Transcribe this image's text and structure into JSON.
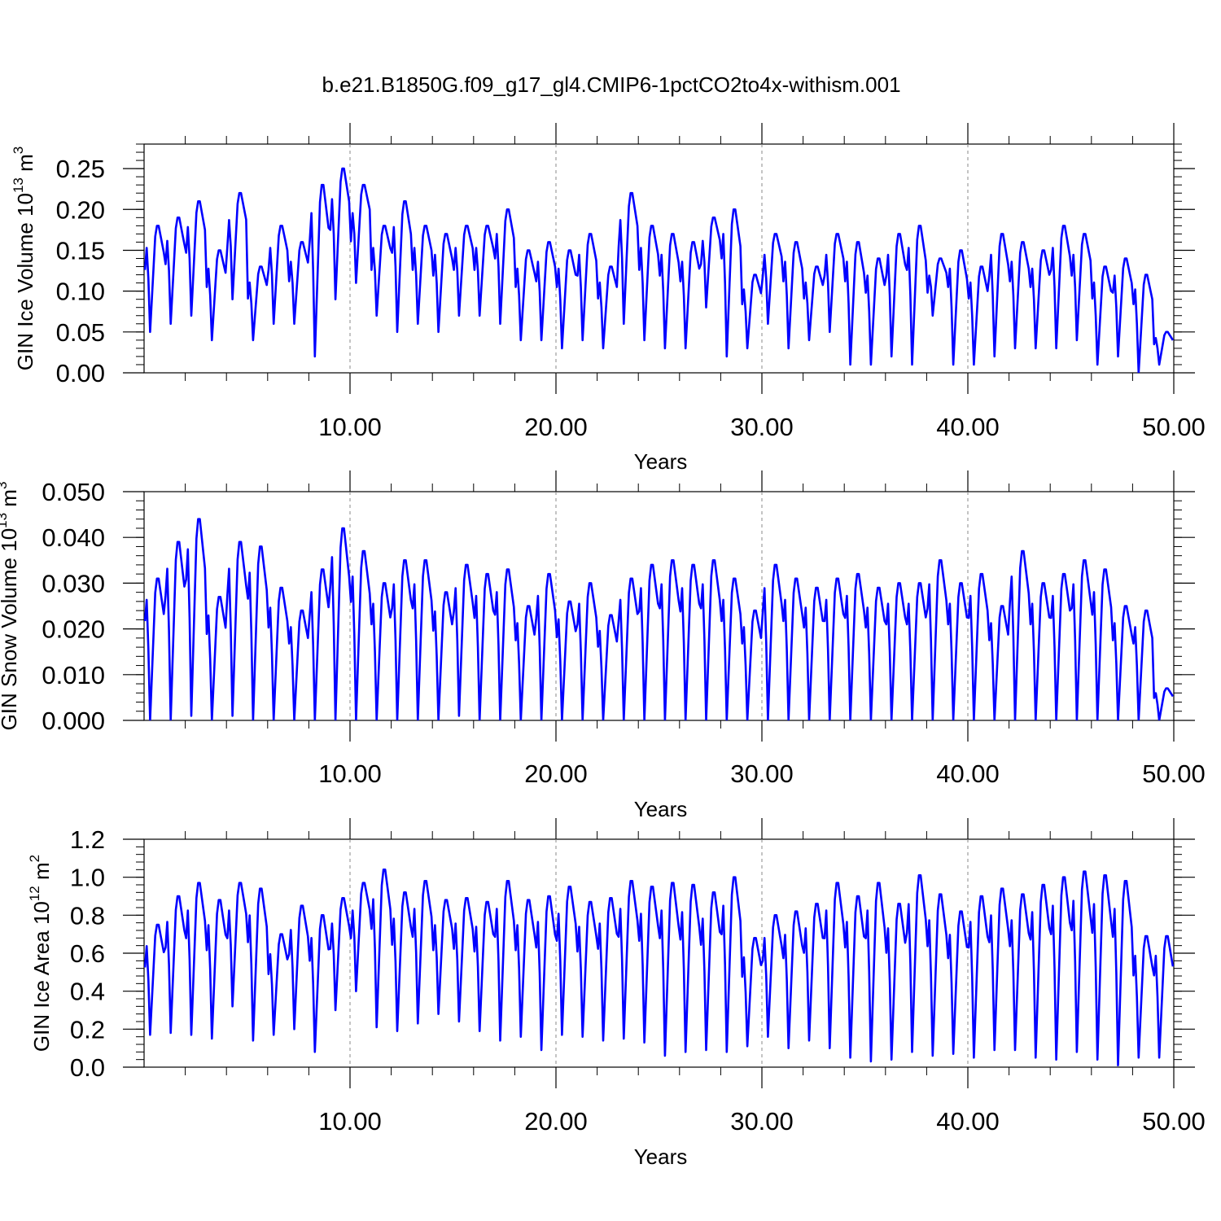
{
  "chart_data": [
    {
      "type": "line",
      "title": "b.e21.B1850G.f09_g17_gl4.CMIP6-1pctCO2to4x-withism.001",
      "xlabel": "Years",
      "ylabel": {
        "prefix": "GIN Ice Volume 10",
        "exp": "13",
        "unit": " m",
        "unit_exp": "3"
      },
      "xlim": [
        0,
        50
      ],
      "ylim": [
        0,
        0.28
      ],
      "xticks": [
        10,
        20,
        30,
        40,
        50
      ],
      "xtick_labels": [
        "10.00",
        "20.00",
        "30.00",
        "40.00",
        "50.00"
      ],
      "yticks": [
        0,
        0.05,
        0.1,
        0.15,
        0.2,
        0.25
      ],
      "ytick_labels": [
        "0.00",
        "0.05",
        "0.10",
        "0.15",
        "0.20",
        "0.25"
      ],
      "grid": "dashed vertical at major x ticks",
      "color": "#0000ff",
      "series": [
        {
          "values_per_year": 12,
          "peaks": [
            0.18,
            0.19,
            0.21,
            0.15,
            0.22,
            0.13,
            0.18,
            0.16,
            0.23,
            0.25,
            0.23,
            0.18,
            0.21,
            0.18,
            0.17,
            0.18,
            0.18,
            0.2,
            0.15,
            0.16,
            0.15,
            0.17,
            0.13,
            0.22,
            0.18,
            0.17,
            0.16,
            0.19,
            0.2,
            0.12,
            0.17,
            0.16,
            0.13,
            0.17,
            0.16,
            0.14,
            0.17,
            0.18,
            0.14,
            0.15,
            0.13,
            0.17,
            0.16,
            0.15,
            0.18,
            0.17,
            0.13,
            0.14,
            0.12,
            0.05
          ],
          "troughs": [
            0.05,
            0.06,
            0.07,
            0.04,
            0.09,
            0.04,
            0.06,
            0.06,
            0.02,
            0.09,
            0.11,
            0.07,
            0.05,
            0.06,
            0.05,
            0.07,
            0.07,
            0.06,
            0.04,
            0.04,
            0.03,
            0.04,
            0.03,
            0.06,
            0.04,
            0.03,
            0.03,
            0.08,
            0.02,
            0.03,
            0.06,
            0.03,
            0.04,
            0.05,
            0.01,
            0.01,
            0.02,
            0.01,
            0.07,
            0.01,
            0.01,
            0.02,
            0.03,
            0.03,
            0.03,
            0.04,
            0.01,
            0.02,
            0.0,
            0.01
          ]
        }
      ]
    },
    {
      "type": "line",
      "xlabel": "Years",
      "ylabel": {
        "prefix": "GIN Snow Volume 10",
        "exp": "13",
        "unit": " m",
        "unit_exp": "3"
      },
      "xlim": [
        0,
        50
      ],
      "ylim": [
        0,
        0.05
      ],
      "xticks": [
        10,
        20,
        30,
        40,
        50
      ],
      "xtick_labels": [
        "10.00",
        "20.00",
        "30.00",
        "40.00",
        "50.00"
      ],
      "yticks": [
        0,
        0.01,
        0.02,
        0.03,
        0.04,
        0.05
      ],
      "ytick_labels": [
        "0.000",
        "0.010",
        "0.020",
        "0.030",
        "0.040",
        "0.050"
      ],
      "grid": "dashed vertical at major x ticks",
      "color": "#0000ff",
      "series": [
        {
          "values_per_year": 12,
          "peaks": [
            0.031,
            0.039,
            0.044,
            0.027,
            0.039,
            0.038,
            0.029,
            0.024,
            0.033,
            0.042,
            0.037,
            0.03,
            0.035,
            0.035,
            0.028,
            0.034,
            0.032,
            0.033,
            0.025,
            0.032,
            0.026,
            0.03,
            0.023,
            0.031,
            0.034,
            0.035,
            0.034,
            0.035,
            0.031,
            0.024,
            0.034,
            0.031,
            0.029,
            0.031,
            0.032,
            0.029,
            0.03,
            0.03,
            0.035,
            0.03,
            0.032,
            0.025,
            0.037,
            0.03,
            0.032,
            0.035,
            0.033,
            0.025,
            0.024,
            0.007
          ],
          "troughs": [
            0.0,
            0.0,
            0.001,
            0.0,
            0.001,
            0.0,
            0.0,
            0.0,
            0.0,
            0.0,
            0.0,
            0.0,
            0.0,
            0.0,
            0.0,
            0.001,
            0.0,
            0.0,
            0.0,
            0.0,
            0.0,
            0.0,
            0.0,
            0.0,
            0.0,
            0.0,
            0.0,
            0.0,
            0.0,
            0.0,
            0.0,
            0.0,
            0.0,
            0.0,
            0.0,
            0.0,
            0.0,
            0.0,
            0.0,
            0.0,
            0.0,
            0.0,
            0.0,
            0.0,
            0.0,
            0.0,
            0.0,
            0.0,
            0.0,
            0.0
          ]
        }
      ]
    },
    {
      "type": "line",
      "xlabel": "Years",
      "ylabel": {
        "prefix": "GIN Ice Area 10",
        "exp": "12",
        "unit": " m",
        "unit_exp": "2"
      },
      "xlim": [
        0,
        50
      ],
      "ylim": [
        0,
        1.2
      ],
      "xticks": [
        10,
        20,
        30,
        40,
        50
      ],
      "xtick_labels": [
        "10.00",
        "20.00",
        "30.00",
        "40.00",
        "50.00"
      ],
      "yticks": [
        0,
        0.2,
        0.4,
        0.6,
        0.8,
        1.0,
        1.2
      ],
      "ytick_labels": [
        "0.0",
        "0.2",
        "0.4",
        "0.6",
        "0.8",
        "1.0",
        "1.2"
      ],
      "grid": "dashed vertical at major x ticks",
      "color": "#0000ff",
      "series": [
        {
          "values_per_year": 12,
          "peaks": [
            0.75,
            0.9,
            0.97,
            0.88,
            0.97,
            0.94,
            0.7,
            0.85,
            0.8,
            0.89,
            0.97,
            1.04,
            0.92,
            0.98,
            0.88,
            0.89,
            0.87,
            0.98,
            0.88,
            0.9,
            0.95,
            0.87,
            0.89,
            0.98,
            0.95,
            0.97,
            0.96,
            0.92,
            1.0,
            0.68,
            0.8,
            0.82,
            0.86,
            0.97,
            0.9,
            0.97,
            0.86,
            1.01,
            0.91,
            0.82,
            0.9,
            0.94,
            0.91,
            0.96,
            1.0,
            1.03,
            1.01,
            0.98,
            0.69,
            0.69
          ],
          "troughs": [
            0.17,
            0.18,
            0.17,
            0.15,
            0.32,
            0.14,
            0.17,
            0.2,
            0.08,
            0.3,
            0.4,
            0.21,
            0.19,
            0.23,
            0.28,
            0.24,
            0.19,
            0.14,
            0.16,
            0.09,
            0.17,
            0.16,
            0.14,
            0.15,
            0.13,
            0.06,
            0.08,
            0.09,
            0.08,
            0.11,
            0.16,
            0.1,
            0.14,
            0.1,
            0.05,
            0.03,
            0.04,
            0.08,
            0.06,
            0.07,
            0.05,
            0.09,
            0.09,
            0.05,
            0.04,
            0.08,
            0.04,
            0.01,
            0.05,
            0.05
          ]
        }
      ]
    }
  ]
}
